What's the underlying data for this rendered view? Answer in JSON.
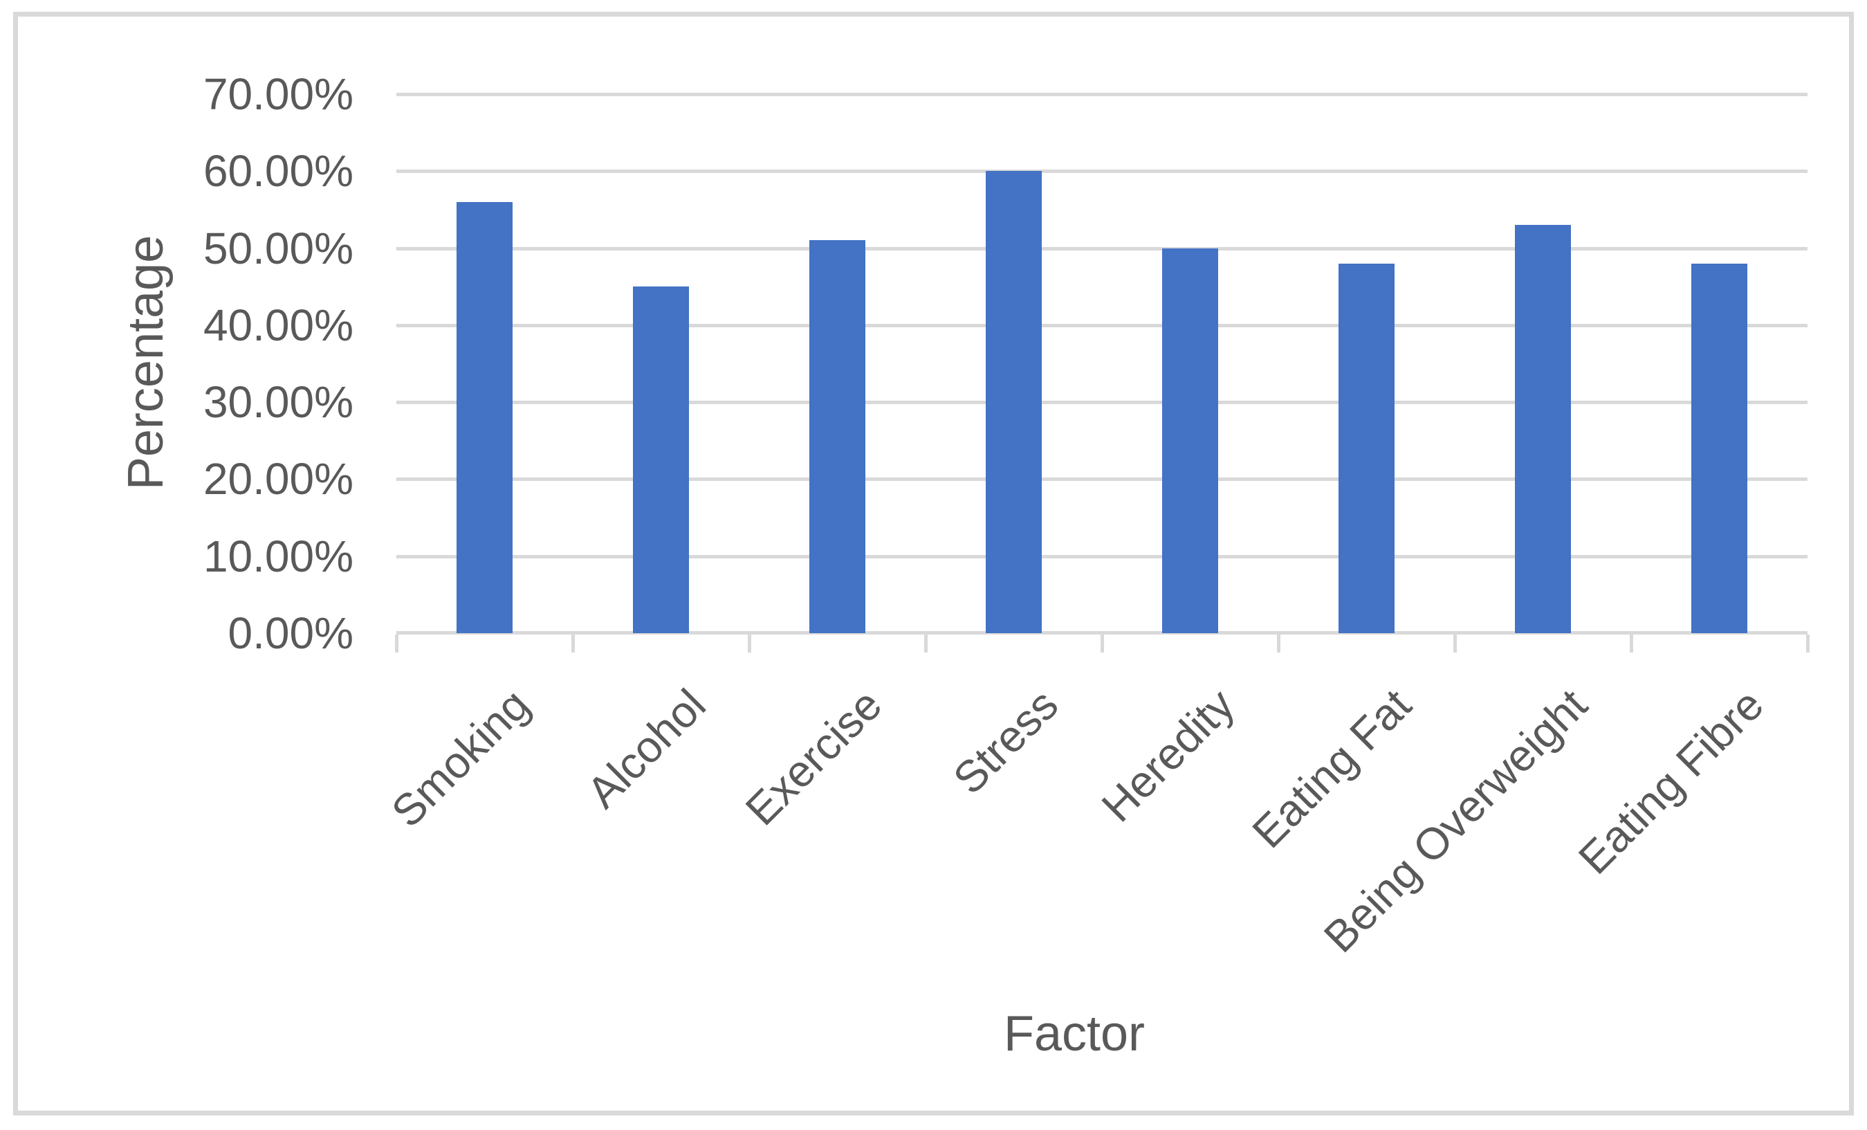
{
  "chart_data": {
    "type": "bar",
    "title": "",
    "categories": [
      "Smoking",
      "Alcohol",
      "Exercise",
      "Stress",
      "Heredity",
      "Eating Fat",
      "Being Overweight",
      "Eating Fibre"
    ],
    "values": [
      56,
      45,
      51,
      60,
      50,
      48,
      53,
      48
    ],
    "value_unit": "%",
    "xlabel": "Factor",
    "ylabel": "Percentage",
    "ylim": [
      0,
      70
    ],
    "ytick_step": 10,
    "ytick_labels": [
      "0.00%",
      "10.00%",
      "20.00%",
      "30.00%",
      "40.00%",
      "50.00%",
      "60.00%",
      "70.00%"
    ],
    "grid": true,
    "legend": "none",
    "colors": {
      "bar": "#4472C4",
      "gridline": "#D9D9D9",
      "axis_line": "#D9D9D9",
      "tick_mark": "#D9D9D9",
      "text": "#595959",
      "frame_border": "#D9D9D9",
      "background": "#FFFFFF"
    }
  }
}
